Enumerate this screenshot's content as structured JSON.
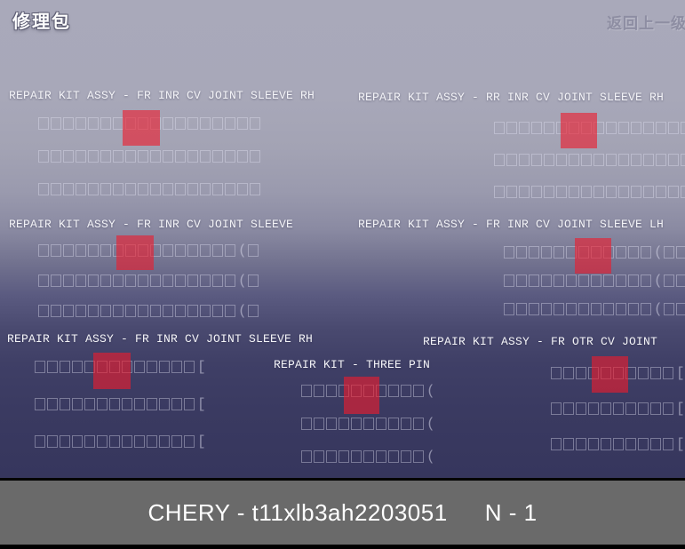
{
  "header": {
    "app_title": "修理包",
    "back_label": "返回上一级"
  },
  "colors": {
    "highlight_red": "#ED1C2D",
    "highlight_red_opacity": "0.62",
    "bg_top": "#A9A9BA",
    "bg_bottom": "#36365D",
    "bottom_bar_bg": "#6A6A6A",
    "label_text": "#F4F4F8"
  },
  "sections": [
    {
      "title": "REPAIR KIT ASSY - FR INR CV JOINT SLEEVE RH",
      "rows": 3,
      "pattern": {
        "boxes": 18,
        "suffix": "",
        "trailing_boxes": 0
      },
      "highlighted": true
    },
    {
      "title": "REPAIR KIT ASSY - RR INR CV JOINT SLEEVE RH",
      "rows": 3,
      "pattern": {
        "boxes": 16,
        "suffix": "",
        "trailing_boxes": 0
      },
      "highlighted": true
    },
    {
      "title": "REPAIR KIT ASSY - FR INR CV JOINT SLEEVE",
      "rows": 3,
      "pattern": {
        "boxes": 16,
        "suffix": "(",
        "trailing_boxes": 1
      },
      "highlighted": true
    },
    {
      "title": "REPAIR KIT ASSY - FR INR CV JOINT SLEEVE LH",
      "rows": 3,
      "pattern": {
        "boxes": 12,
        "suffix": "(",
        "trailing_boxes": 2
      },
      "highlighted": true
    },
    {
      "title": "REPAIR KIT ASSY - FR INR CV JOINT SLEEVE RH",
      "rows": 3,
      "pattern": {
        "boxes": 13,
        "suffix": "[",
        "trailing_boxes": 0
      },
      "highlighted": true
    },
    {
      "title": "REPAIR KIT  - THREE PIN",
      "rows": 3,
      "pattern": {
        "boxes": 10,
        "suffix": "(",
        "trailing_boxes": 0
      },
      "highlighted": true
    },
    {
      "title": "REPAIR KIT ASSY - FR OTR CV JOINT",
      "rows": 3,
      "pattern": {
        "boxes": 10,
        "suffix": "[",
        "trailing_boxes": 0
      },
      "highlighted": true
    }
  ],
  "footer": {
    "brand_part": "CHERY - t11xlb3ah2203051",
    "page_indicator": "N - 1"
  }
}
